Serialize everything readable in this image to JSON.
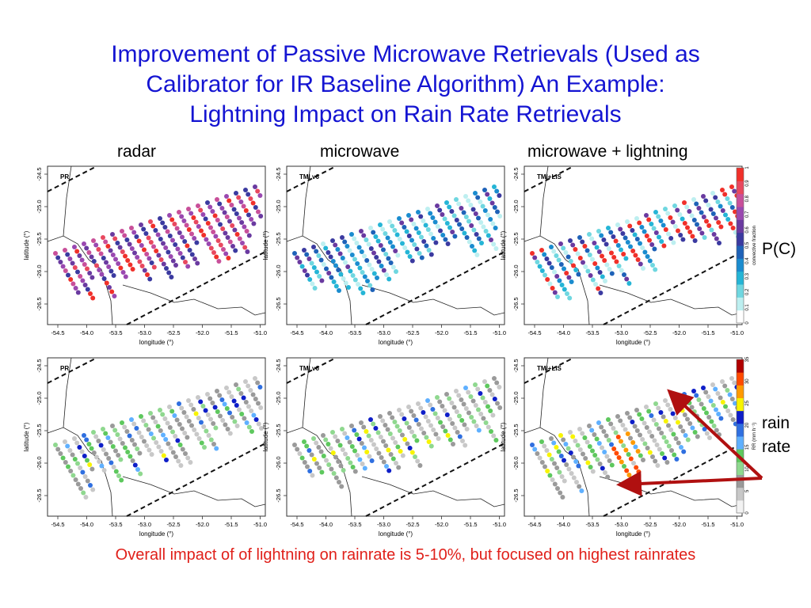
{
  "title": {
    "line1": "Improvement of Passive Microwave Retrievals (Used as",
    "line2": "Calibrator for IR Baseline Algorithm)  An Example:",
    "line3": "Lightning Impact on Rain Rate Retrievals"
  },
  "columns": [
    "radar",
    "microwave",
    "microwave + lightning"
  ],
  "panel_tags": [
    "PR",
    "TMI v6",
    "TMI+LIS"
  ],
  "axes": {
    "xlabel": "longitude (°)",
    "ylabel": "latitude (°)",
    "xticks": [
      "-54.5",
      "-54.0",
      "-53.5",
      "-53.0",
      "-52.5",
      "-52.0",
      "-51.5",
      "-51.0"
    ],
    "yticks": [
      "-24.5",
      "-25.0",
      "-25.5",
      "-26.0",
      "-26.5"
    ]
  },
  "colorbars": {
    "top": {
      "label": "convective fraction",
      "ticks": [
        "0",
        "0.1",
        "0.2",
        "0.3",
        "0.4",
        "0.5",
        "0.6",
        "0.7",
        "0.8",
        "0.9",
        "1"
      ],
      "colors": [
        "#ffffff",
        "#bdeff0",
        "#6fd7e0",
        "#25b5d6",
        "#1a8ccf",
        "#1e62b8",
        "#3b3aa0",
        "#6a3aa0",
        "#9a48b0",
        "#c84f9a",
        "#e8485f",
        "#f0302a"
      ]
    },
    "bottom": {
      "label": "RR (mm h⁻¹)",
      "ticks": [
        "0",
        "5",
        "10",
        "15",
        "20",
        "25",
        "30",
        "35"
      ],
      "colors": [
        "#f2f2f2",
        "#c8c8c8",
        "#9a9a9a",
        "#8fd88f",
        "#5ec85e",
        "#5fb0ff",
        "#2f6fe0",
        "#0e1ec8",
        "#f8f400",
        "#ff9a00",
        "#ff4a00",
        "#b00000"
      ]
    }
  },
  "side_labels": {
    "pc": "P(C)",
    "rain_rate_1": "rain",
    "rain_rate_2": "rate"
  },
  "annotation": {
    "arrow_color": "#b01010"
  },
  "footer": "Overall impact of of lightning on rainrate is 5-10%, but focused on highest rainrates"
}
